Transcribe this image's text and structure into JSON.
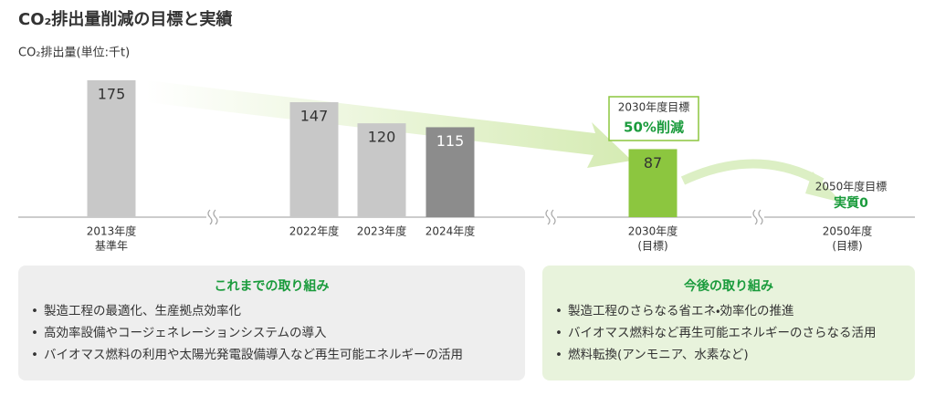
{
  "chart_data": {
    "type": "bar",
    "title": "CO₂排出量削減の目標と実績",
    "subtitle": "CO₂排出量(単位:千t)",
    "categories": [
      [
        "2013年度",
        "基準年"
      ],
      [
        "2022年度"
      ],
      [
        "2023年度"
      ],
      [
        "2024年度"
      ],
      [
        "2030年度",
        "(目標)"
      ],
      [
        "2050年度",
        "(目標)"
      ]
    ],
    "values": [
      175,
      147,
      120,
      115,
      87,
      null
    ],
    "colors": [
      "#c8c8c8",
      "#c8c8c8",
      "#c8c8c8",
      "#8c8c8c",
      "#8cc63f",
      "#8cc63f"
    ],
    "ylim": [
      0,
      175
    ],
    "annotations": [
      [
        "2030年度目標",
        "50%削減"
      ],
      [
        "2050年度目標",
        "実質0"
      ]
    ]
  },
  "panels": [
    {
      "title": "これまでの取り組み",
      "items": [
        "製造工程の最適化、生産拠点効率化",
        "高効率設備やコージェネレーションシステムの導入",
        "バイオマス燃料の利用や太陽光発電設備導入など再生可能エネルギーの活用"
      ]
    },
    {
      "title": "今後の取り組み",
      "items": [
        "製造工程のさらなる省エネ・効率化の推進",
        "バイオマス燃料など再生可能エネルギーのさらなる活用",
        "燃料転換(アンモニア、水素など)"
      ]
    }
  ]
}
